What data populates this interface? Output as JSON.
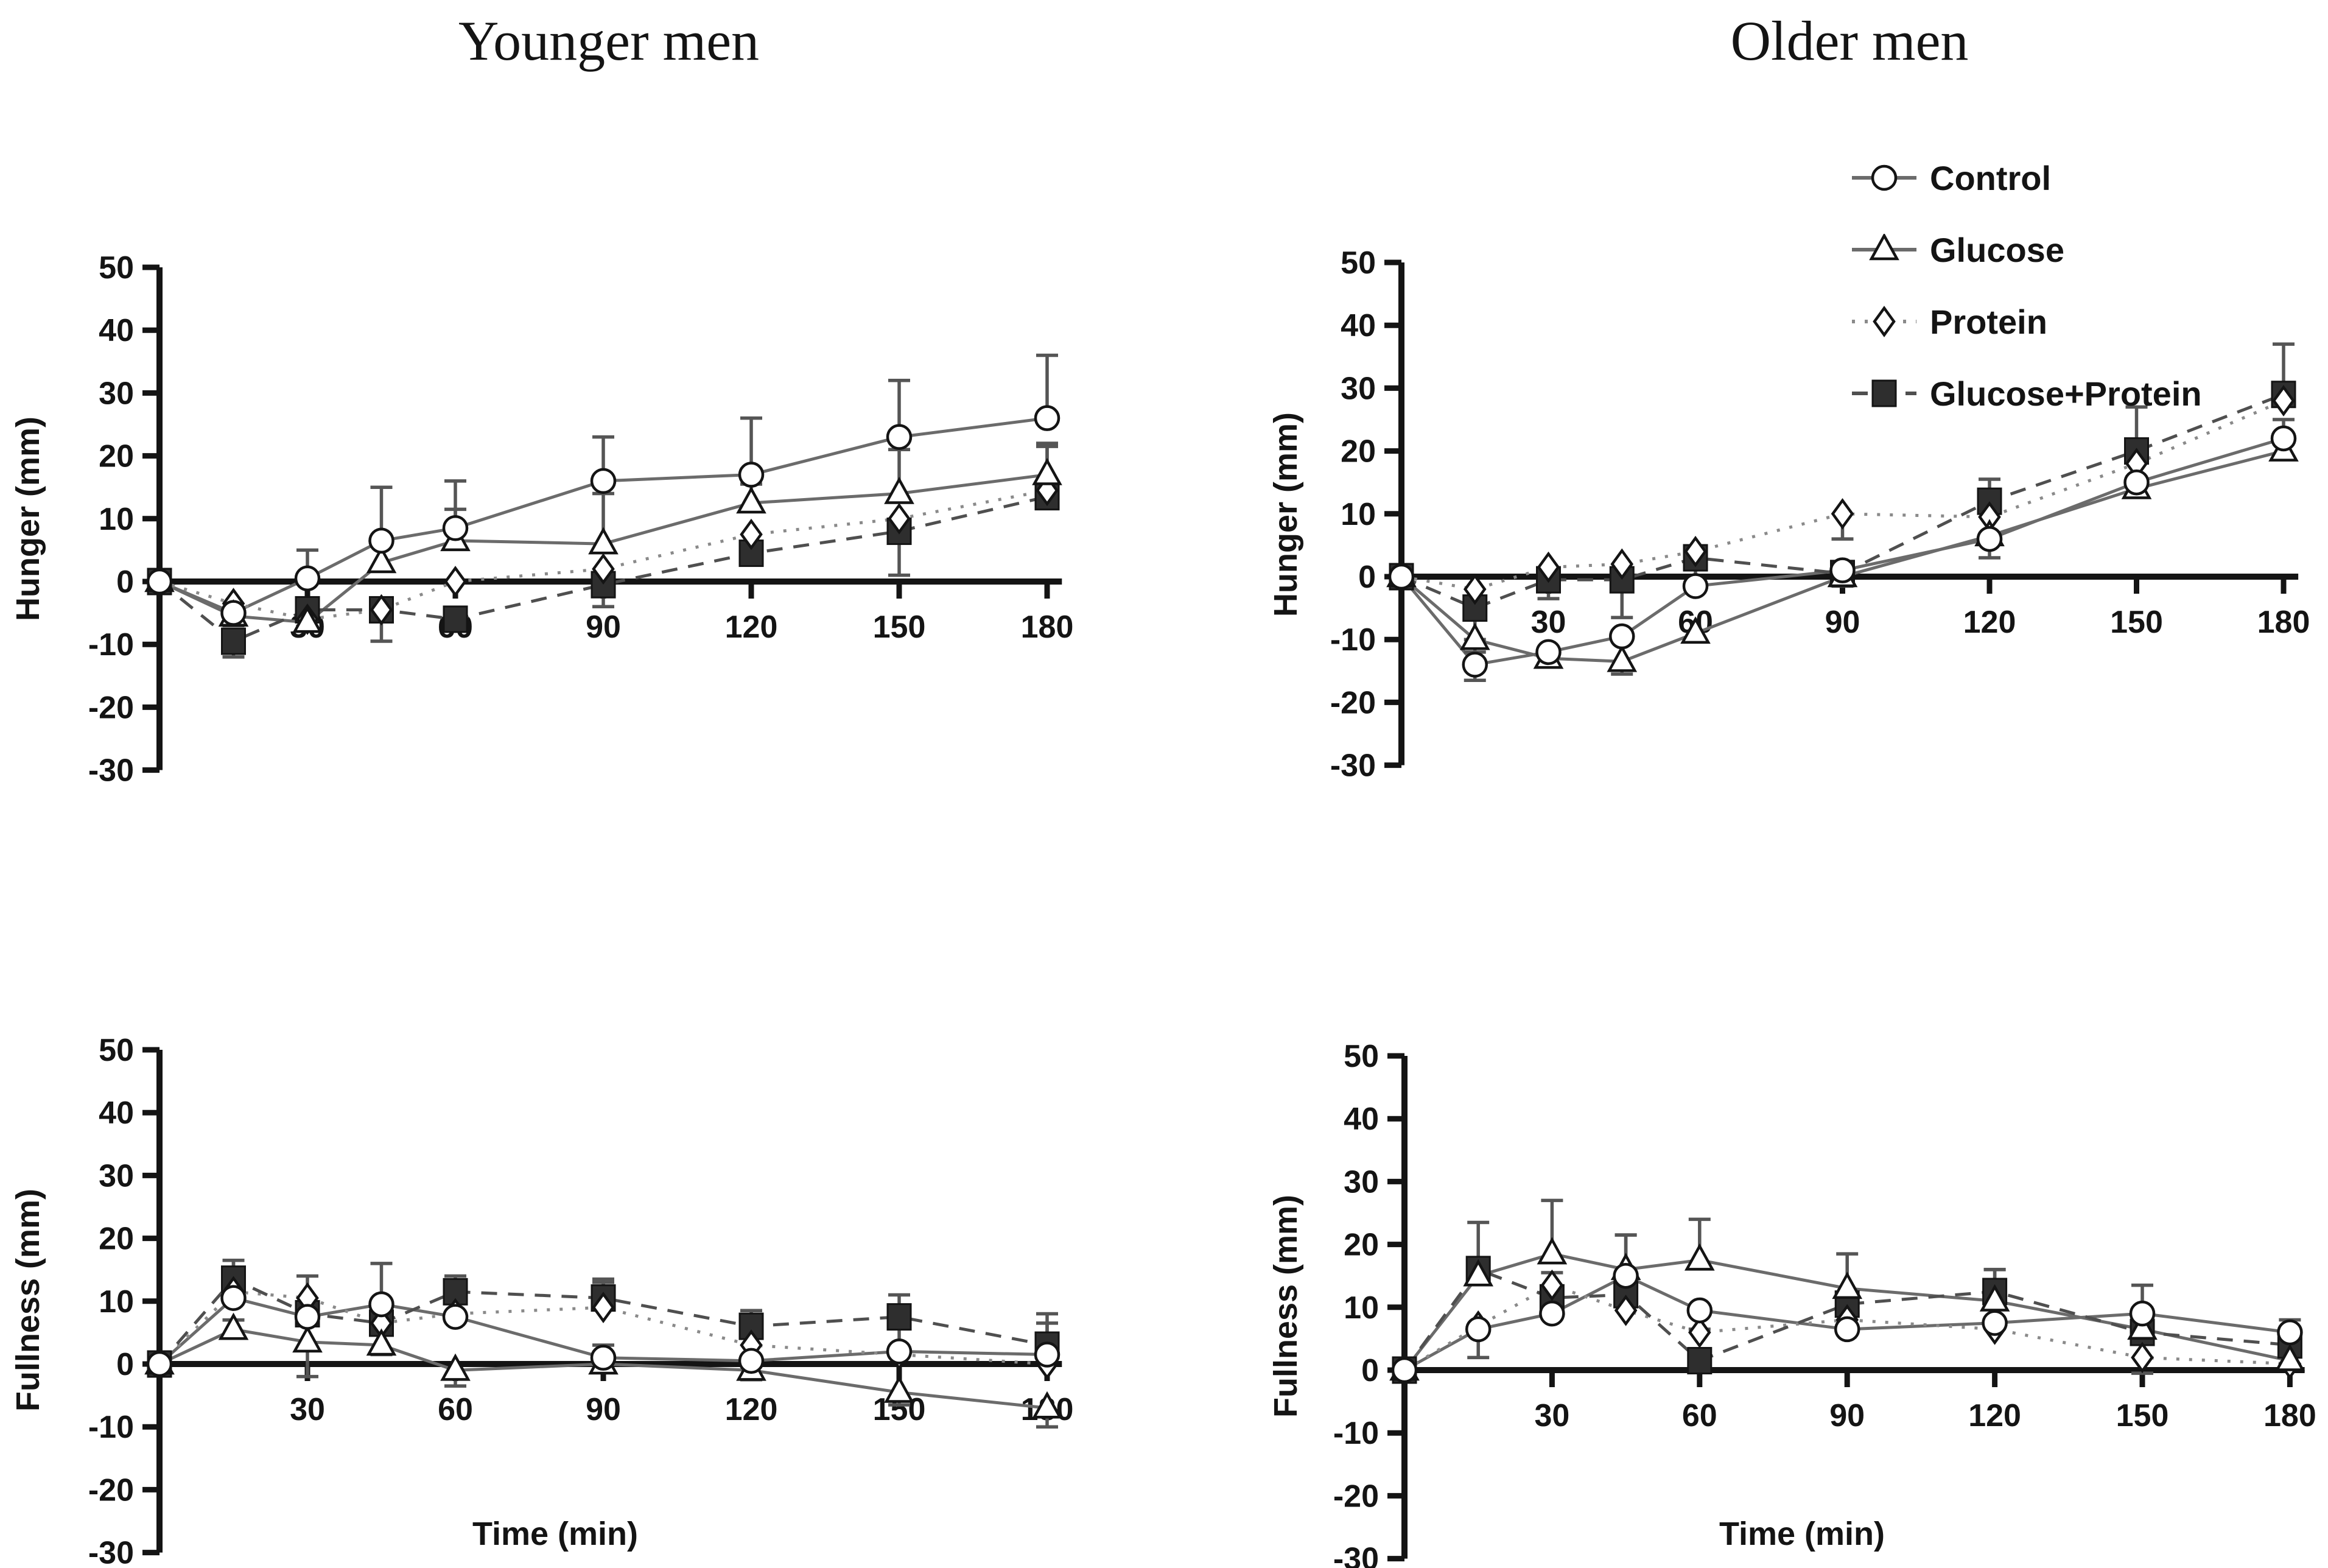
{
  "titles": {
    "left": "Younger men",
    "right": "Older men"
  },
  "axes": {
    "x_label": "Time (min)",
    "x_ticks": [
      30,
      60,
      90,
      120,
      150,
      180
    ],
    "y_ticks": [
      50,
      40,
      30,
      20,
      10,
      0,
      -10,
      -20,
      -30
    ],
    "x_range": [
      0,
      183
    ],
    "y_range": [
      -30,
      50
    ],
    "grid": false
  },
  "legend": {
    "position": "top-right",
    "items": [
      {
        "label": "Control",
        "marker": "circle",
        "line": "solid"
      },
      {
        "label": "Glucose",
        "marker": "triangle",
        "line": "solid"
      },
      {
        "label": "Protein",
        "marker": "diamond",
        "line": "dotted"
      },
      {
        "label": "Glucose+Protein",
        "marker": "square",
        "line": "dashed"
      }
    ]
  },
  "colors": {
    "ink": "#141414",
    "solid_line": "#6b6b6b",
    "dotted_line": "#8a8a8a",
    "dashed_line": "#4f4f4f",
    "error": "#555555",
    "square_fill": "#2e2e2e",
    "marker_fill": "#ffffff",
    "background": "#ffffff"
  },
  "chart_data": [
    {
      "id": "younger-hunger",
      "type": "line",
      "title": "Younger men",
      "ylabel": "Hunger (mm)",
      "xlabel": "",
      "ylim": [
        -30,
        50
      ],
      "x": [
        0,
        15,
        30,
        45,
        60,
        90,
        120,
        150,
        180
      ],
      "series": [
        {
          "name": "Control",
          "marker": "circle",
          "line": "solid",
          "values": [
            0,
            -5,
            0.5,
            6.5,
            8.5,
            16,
            17,
            23,
            26
          ],
          "err": [
            0,
            -2,
            4.5,
            8.5,
            7.5,
            7,
            9,
            9,
            10
          ]
        },
        {
          "name": "Glucose",
          "marker": "triangle",
          "line": "solid",
          "values": [
            0,
            -5.5,
            -6.5,
            3,
            6.5,
            6,
            12.5,
            14,
            17
          ],
          "err": [
            0,
            0,
            0,
            0,
            5,
            8,
            3,
            7,
            5
          ]
        },
        {
          "name": "Protein",
          "marker": "diamond",
          "line": "dotted",
          "values": [
            0,
            -3.5,
            -6,
            -4.5,
            0,
            2,
            7.5,
            10,
            14.5
          ],
          "err": [
            0,
            -2,
            0,
            0,
            0,
            0,
            0,
            0,
            0
          ]
        },
        {
          "name": "Glucose+Protein",
          "marker": "square",
          "line": "dashed",
          "values": [
            0,
            -9.5,
            -4.5,
            -4.5,
            -6,
            -0.5,
            4.5,
            8,
            13.5
          ],
          "err": [
            0,
            -2.5,
            0,
            -5,
            0,
            -3.5,
            0,
            -7,
            8
          ]
        }
      ]
    },
    {
      "id": "older-hunger",
      "type": "line",
      "title": "Older men",
      "ylabel": "Hunger (mm)",
      "xlabel": "",
      "ylim": [
        -30,
        50
      ],
      "x": [
        0,
        15,
        30,
        45,
        60,
        90,
        120,
        150,
        180
      ],
      "series": [
        {
          "name": "Control",
          "marker": "circle",
          "line": "solid",
          "values": [
            0,
            -14,
            -12,
            -9.5,
            -1.5,
            1,
            6,
            15,
            22
          ],
          "err": [
            0,
            -2.5,
            0,
            0,
            0,
            0,
            -3,
            0,
            3
          ]
        },
        {
          "name": "Glucose",
          "marker": "triangle",
          "line": "solid",
          "values": [
            0,
            -10,
            -13,
            -13.5,
            -9,
            0,
            6.5,
            14,
            20
          ],
          "err": [
            0,
            -2,
            0,
            -2,
            0,
            0,
            0,
            0,
            0
          ]
        },
        {
          "name": "Protein",
          "marker": "diamond",
          "line": "dotted",
          "values": [
            0,
            -2,
            1.5,
            2,
            4,
            10,
            9.5,
            18,
            28
          ],
          "err": [
            0,
            0,
            0,
            0,
            0,
            -4,
            0,
            0,
            0
          ]
        },
        {
          "name": "Glucose+Protein",
          "marker": "square",
          "line": "dashed",
          "values": [
            0,
            -5,
            -0.5,
            -0.5,
            3,
            0.5,
            12,
            20,
            29
          ],
          "err": [
            0,
            -5,
            -3,
            -6,
            -4,
            -2,
            3.5,
            7,
            8
          ]
        }
      ]
    },
    {
      "id": "younger-fullness",
      "type": "line",
      "ylabel": "Fullness (mm)",
      "xlabel": "Time (min)",
      "ylim": [
        -30,
        50
      ],
      "x": [
        0,
        15,
        30,
        45,
        60,
        90,
        120,
        150,
        180
      ],
      "series": [
        {
          "name": "Control",
          "marker": "circle",
          "line": "solid",
          "values": [
            0,
            10.5,
            7.5,
            9.5,
            7.5,
            1,
            0.5,
            2,
            1.5
          ],
          "err": [
            0,
            6,
            6.5,
            6.5,
            0,
            2,
            -3,
            4,
            5
          ]
        },
        {
          "name": "Glucose",
          "marker": "triangle",
          "line": "solid",
          "values": [
            0,
            5.5,
            3.5,
            3,
            -1,
            0,
            -1,
            -4.5,
            -7
          ],
          "err": [
            0,
            1.5,
            -5.5,
            -1.5,
            -2.5,
            0,
            0,
            -2,
            -3
          ]
        },
        {
          "name": "Protein",
          "marker": "diamond",
          "line": "dotted",
          "values": [
            0,
            11.5,
            10.5,
            6.5,
            8,
            9,
            3,
            1.5,
            0
          ],
          "err": [
            0,
            0,
            0,
            0,
            0,
            4,
            0,
            0,
            0
          ]
        },
        {
          "name": "Glucose+Protein",
          "marker": "square",
          "line": "dashed",
          "values": [
            0,
            13.5,
            8,
            6.5,
            11.5,
            10.5,
            6,
            7.5,
            3
          ],
          "err": [
            0,
            3,
            0,
            0,
            2.5,
            3,
            2.5,
            3.5,
            5
          ]
        }
      ]
    },
    {
      "id": "older-fullness",
      "type": "line",
      "ylabel": "Fullness (mm)",
      "xlabel": "Time (min)",
      "ylim": [
        -30,
        50
      ],
      "x": [
        0,
        15,
        30,
        45,
        60,
        90,
        120,
        150,
        180
      ],
      "series": [
        {
          "name": "Control",
          "marker": "circle",
          "line": "solid",
          "values": [
            0,
            6.5,
            9,
            15,
            9.5,
            6.5,
            7.5,
            9,
            6
          ],
          "err": [
            0,
            -4.5,
            0,
            6.5,
            -3,
            0,
            0,
            4.5,
            2
          ]
        },
        {
          "name": "Glucose",
          "marker": "triangle",
          "line": "solid",
          "values": [
            0,
            15,
            18.5,
            16,
            17.5,
            13,
            11,
            6.5,
            1.5
          ],
          "err": [
            0,
            0,
            8.5,
            5.5,
            6.5,
            5.5,
            5,
            0,
            0
          ]
        },
        {
          "name": "Protein",
          "marker": "diamond",
          "line": "dotted",
          "values": [
            0,
            7,
            13.5,
            9.5,
            6,
            8,
            6.5,
            2,
            1
          ],
          "err": [
            0,
            0,
            2,
            0,
            0,
            0,
            0,
            -2.5,
            0
          ]
        },
        {
          "name": "Glucose+Protein",
          "marker": "square",
          "line": "dashed",
          "values": [
            0,
            16,
            11.5,
            12,
            1.5,
            10.5,
            12.5,
            6,
            4
          ],
          "err": [
            0,
            7.5,
            0,
            0,
            0,
            0,
            3.5,
            0,
            0
          ]
        }
      ]
    }
  ]
}
